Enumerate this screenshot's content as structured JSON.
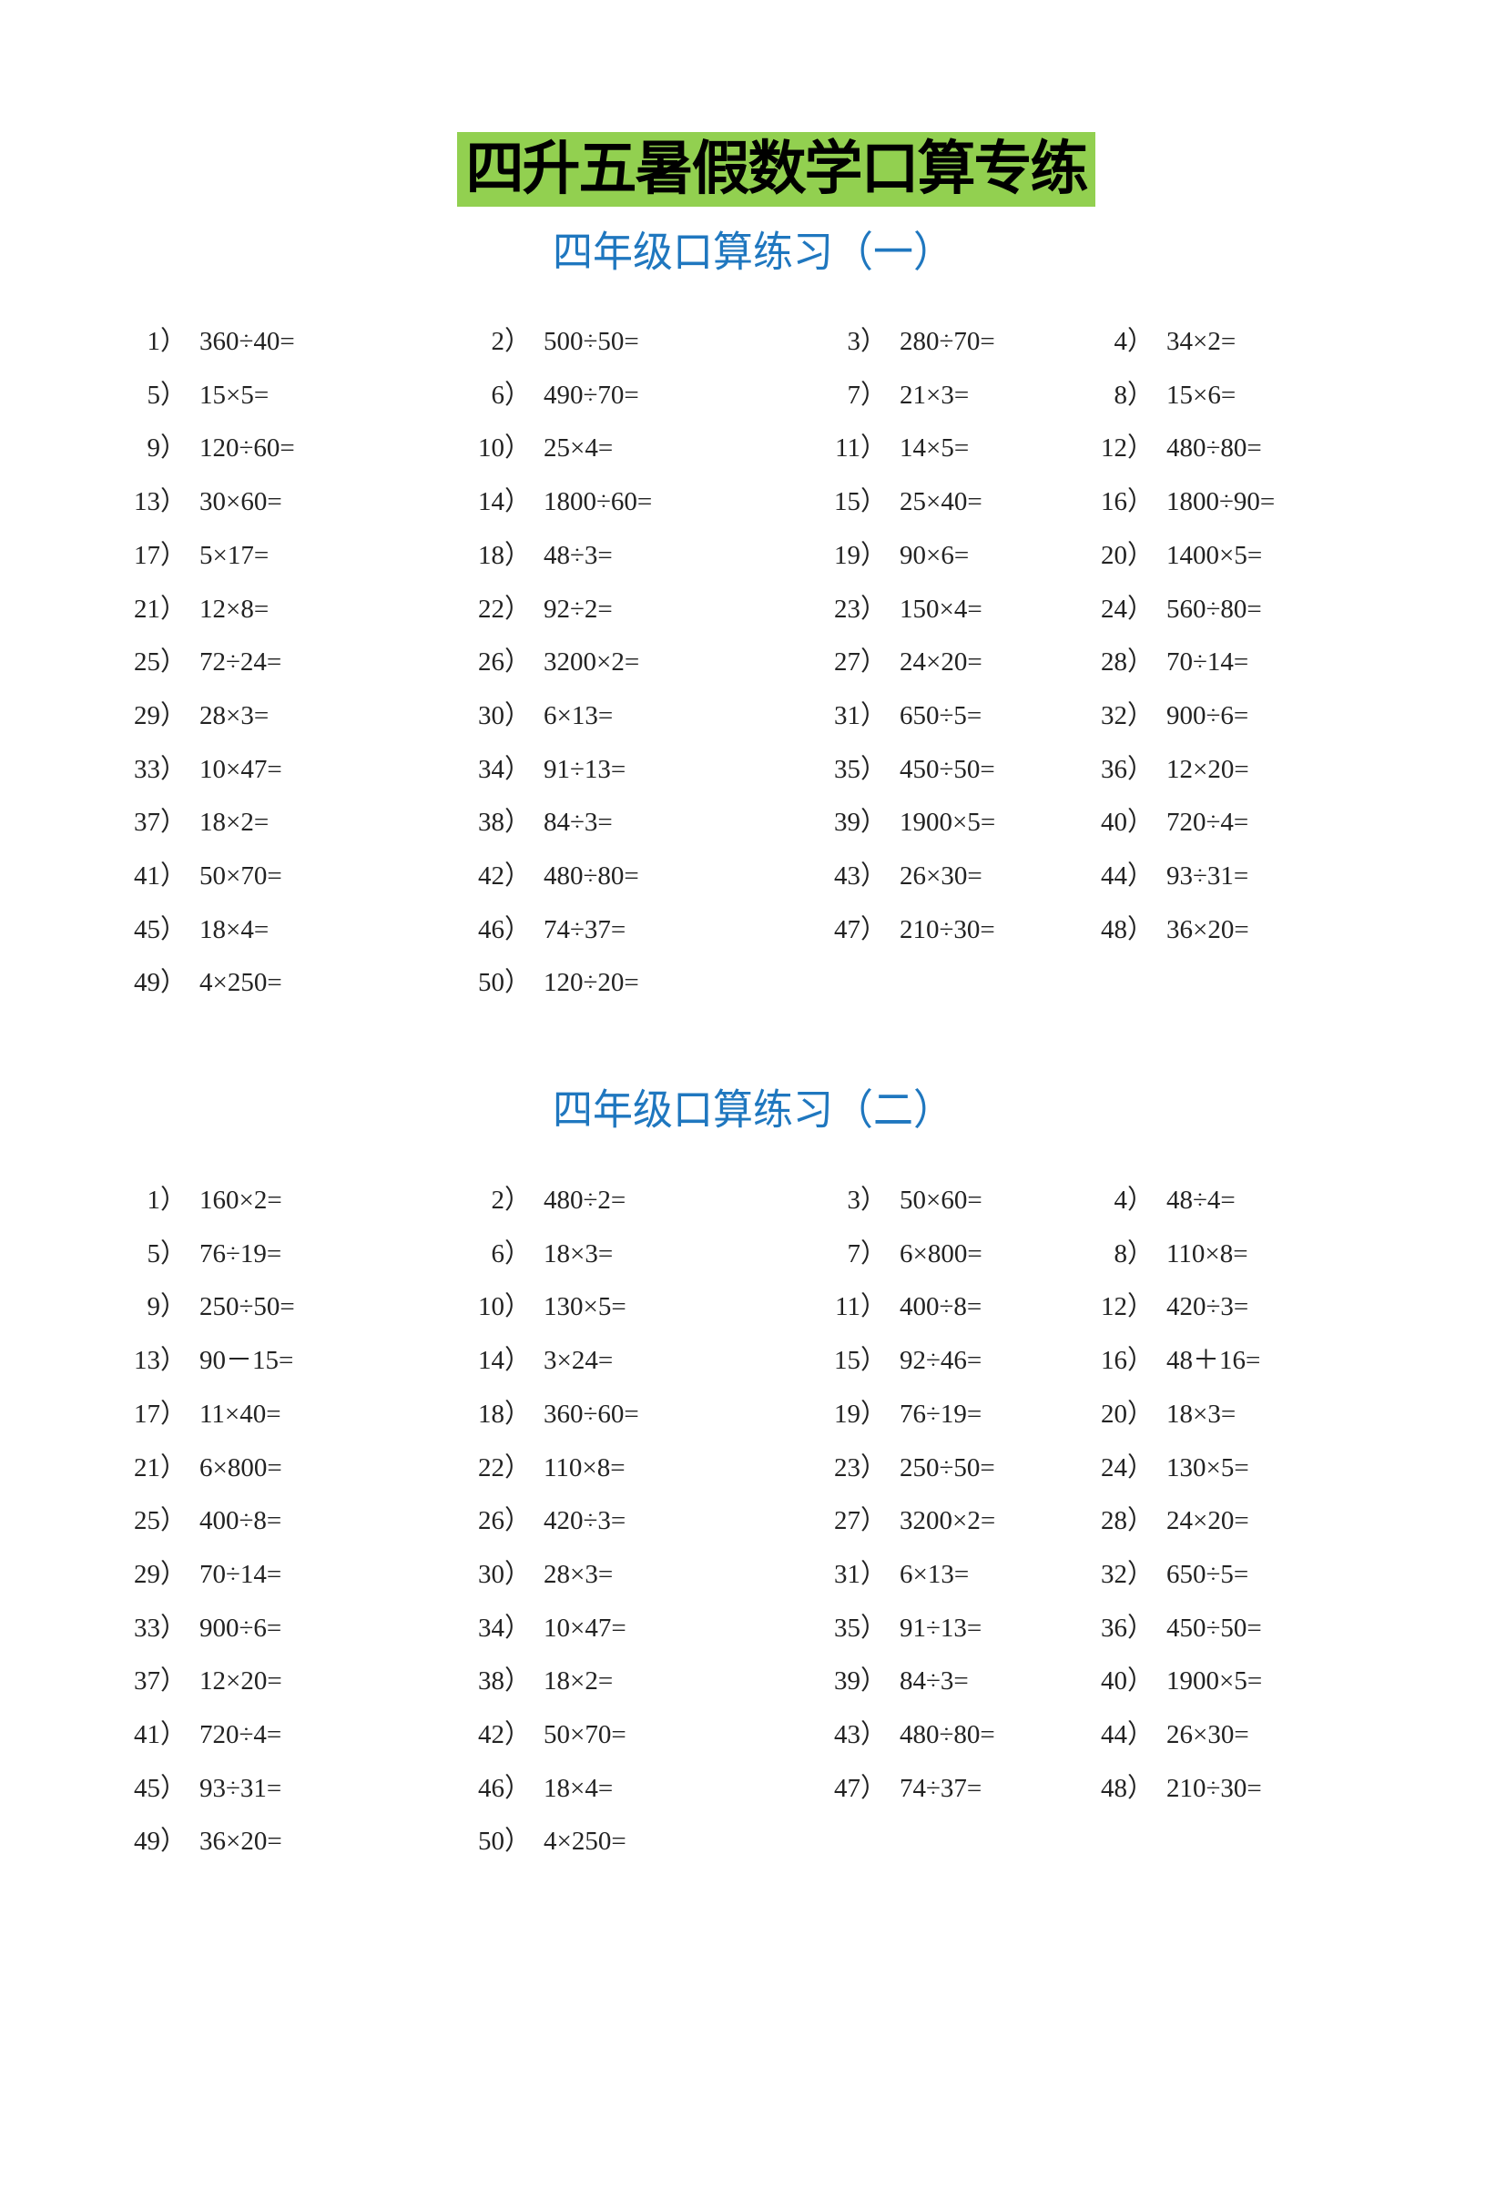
{
  "title": "四升五暑假数学口算专练",
  "sections": [
    {
      "title": "四年级口算练习（一）",
      "items": [
        {
          "n": "1）",
          "e": "360÷40="
        },
        {
          "n": "2）",
          "e": "500÷50="
        },
        {
          "n": "3）",
          "e": "280÷70="
        },
        {
          "n": "4）",
          "e": "34×2="
        },
        {
          "n": "5）",
          "e": "15×5="
        },
        {
          "n": "6）",
          "e": "490÷70="
        },
        {
          "n": "7）",
          "e": "21×3="
        },
        {
          "n": "8）",
          "e": "15×6="
        },
        {
          "n": "9）",
          "e": "120÷60="
        },
        {
          "n": "10）",
          "e": "25×4="
        },
        {
          "n": "11）",
          "e": "14×5="
        },
        {
          "n": "12）",
          "e": "480÷80="
        },
        {
          "n": "13）",
          "e": "30×60="
        },
        {
          "n": "14）",
          "e": "1800÷60="
        },
        {
          "n": "15）",
          "e": "25×40="
        },
        {
          "n": "16）",
          "e": "1800÷90="
        },
        {
          "n": "17）",
          "e": "5×17="
        },
        {
          "n": "18）",
          "e": "48÷3="
        },
        {
          "n": "19）",
          "e": "90×6="
        },
        {
          "n": "20）",
          "e": "1400×5="
        },
        {
          "n": "21）",
          "e": "12×8="
        },
        {
          "n": "22）",
          "e": "92÷2="
        },
        {
          "n": "23）",
          "e": "150×4="
        },
        {
          "n": "24）",
          "e": "560÷80="
        },
        {
          "n": "25）",
          "e": "72÷24="
        },
        {
          "n": "26）",
          "e": "3200×2="
        },
        {
          "n": "27）",
          "e": "24×20="
        },
        {
          "n": "28）",
          "e": "70÷14="
        },
        {
          "n": "29）",
          "e": "28×3="
        },
        {
          "n": "30）",
          "e": "6×13="
        },
        {
          "n": "31）",
          "e": "650÷5="
        },
        {
          "n": "32）",
          "e": "900÷6="
        },
        {
          "n": "33）",
          "e": "10×47="
        },
        {
          "n": "34）",
          "e": "91÷13="
        },
        {
          "n": "35）",
          "e": "450÷50="
        },
        {
          "n": "36）",
          "e": "12×20="
        },
        {
          "n": "37）",
          "e": "18×2="
        },
        {
          "n": "38）",
          "e": "84÷3="
        },
        {
          "n": "39）",
          "e": "1900×5="
        },
        {
          "n": "40）",
          "e": "720÷4="
        },
        {
          "n": "41）",
          "e": "50×70="
        },
        {
          "n": "42）",
          "e": "480÷80="
        },
        {
          "n": "43）",
          "e": "26×30="
        },
        {
          "n": "44）",
          "e": "93÷31="
        },
        {
          "n": "45）",
          "e": "18×4="
        },
        {
          "n": "46）",
          "e": "74÷37="
        },
        {
          "n": "47）",
          "e": "210÷30="
        },
        {
          "n": "48）",
          "e": "36×20="
        },
        {
          "n": "49）",
          "e": "4×250="
        },
        {
          "n": "50）",
          "e": "120÷20="
        }
      ]
    },
    {
      "title": "四年级口算练习（二）",
      "items": [
        {
          "n": "1）",
          "e": "160×2="
        },
        {
          "n": "2）",
          "e": "480÷2="
        },
        {
          "n": "3）",
          "e": "50×60="
        },
        {
          "n": "4）",
          "e": "48÷4="
        },
        {
          "n": "5）",
          "e": "76÷19="
        },
        {
          "n": "6）",
          "e": "18×3="
        },
        {
          "n": "7）",
          "e": "6×800="
        },
        {
          "n": "8）",
          "e": "110×8="
        },
        {
          "n": "9）",
          "e": "250÷50="
        },
        {
          "n": "10）",
          "e": "130×5="
        },
        {
          "n": "11）",
          "e": "400÷8="
        },
        {
          "n": "12）",
          "e": "420÷3="
        },
        {
          "n": "13）",
          "e": "90－15="
        },
        {
          "n": "14）",
          "e": "3×24="
        },
        {
          "n": "15）",
          "e": "92÷46="
        },
        {
          "n": "16）",
          "e": "48＋16="
        },
        {
          "n": "17）",
          "e": "11×40="
        },
        {
          "n": "18）",
          "e": "360÷60="
        },
        {
          "n": "19）",
          "e": "76÷19="
        },
        {
          "n": "20）",
          "e": "18×3="
        },
        {
          "n": "21）",
          "e": "6×800="
        },
        {
          "n": "22）",
          "e": "110×8="
        },
        {
          "n": "23）",
          "e": "250÷50="
        },
        {
          "n": "24）",
          "e": "130×5="
        },
        {
          "n": "25）",
          "e": "400÷8="
        },
        {
          "n": "26）",
          "e": "420÷3="
        },
        {
          "n": "27）",
          "e": "3200×2="
        },
        {
          "n": "28）",
          "e": "24×20="
        },
        {
          "n": "29）",
          "e": "70÷14="
        },
        {
          "n": "30）",
          "e": "28×3="
        },
        {
          "n": "31）",
          "e": "6×13="
        },
        {
          "n": "32）",
          "e": "650÷5="
        },
        {
          "n": "33）",
          "e": "900÷6="
        },
        {
          "n": "34）",
          "e": "10×47="
        },
        {
          "n": "35）",
          "e": "91÷13="
        },
        {
          "n": "36）",
          "e": "450÷50="
        },
        {
          "n": "37）",
          "e": "12×20="
        },
        {
          "n": "38）",
          "e": "18×2="
        },
        {
          "n": "39）",
          "e": "84÷3="
        },
        {
          "n": "40）",
          "e": "1900×5="
        },
        {
          "n": "41）",
          "e": "720÷4="
        },
        {
          "n": "42）",
          "e": "50×70="
        },
        {
          "n": "43）",
          "e": "480÷80="
        },
        {
          "n": "44）",
          "e": "26×30="
        },
        {
          "n": "45）",
          "e": "93÷31="
        },
        {
          "n": "46）",
          "e": "18×4="
        },
        {
          "n": "47）",
          "e": "74÷37="
        },
        {
          "n": "48）",
          "e": "210÷30="
        },
        {
          "n": "49）",
          "e": "36×20="
        },
        {
          "n": "50）",
          "e": "4×250="
        }
      ]
    }
  ],
  "colors": {
    "title_bg": "#92d050",
    "section_title": "#1f77bf"
  }
}
